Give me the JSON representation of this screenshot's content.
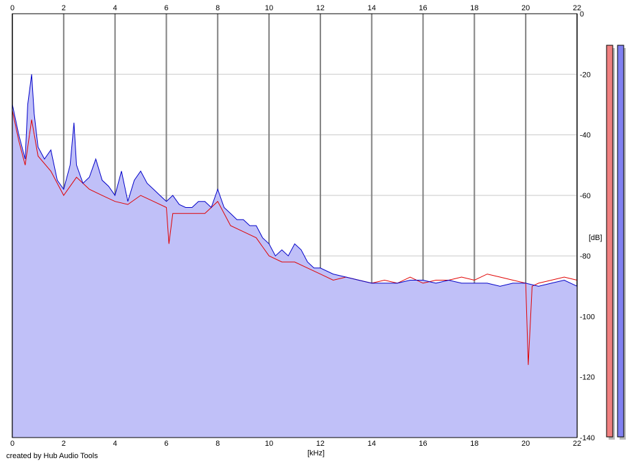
{
  "credit": "created by Hub Audio Tools",
  "chart_data": {
    "type": "area",
    "title": "",
    "xlabel": "[kHz]",
    "ylabel": "[dB]",
    "xlim": [
      0,
      22
    ],
    "ylim": [
      -140,
      0
    ],
    "x_ticks": [
      0,
      2,
      4,
      6,
      8,
      10,
      12,
      14,
      16,
      18,
      20,
      22
    ],
    "y_ticks": [
      0,
      -20,
      -40,
      -60,
      -80,
      -100,
      -120,
      -140
    ],
    "grid": true,
    "colors": {
      "fill": "#c0c0f8",
      "channel_a": "#0000c8",
      "channel_b": "#e00000",
      "meter_a": "#f08080",
      "meter_b": "#8080f0",
      "grid_major": "#808080",
      "grid_minor": "#c8c8c8"
    },
    "series": [
      {
        "color": "#0000c8",
        "x": [
          0.0,
          0.25,
          0.5,
          0.6,
          0.75,
          0.85,
          1.0,
          1.25,
          1.5,
          1.75,
          2.0,
          2.25,
          2.4,
          2.5,
          2.75,
          3.0,
          3.25,
          3.5,
          3.75,
          4.0,
          4.25,
          4.5,
          4.75,
          5.0,
          5.25,
          5.5,
          5.75,
          6.0,
          6.25,
          6.5,
          6.75,
          7.0,
          7.25,
          7.5,
          7.75,
          8.0,
          8.25,
          8.5,
          8.75,
          9.0,
          9.25,
          9.5,
          9.75,
          10.0,
          10.25,
          10.5,
          10.75,
          11.0,
          11.25,
          11.5,
          11.75,
          12.0,
          12.5,
          13.0,
          13.5,
          14.0,
          14.5,
          15.0,
          15.5,
          16.0,
          16.5,
          17.0,
          17.5,
          18.0,
          18.5,
          19.0,
          19.5,
          20.0,
          20.5,
          21.0,
          21.5,
          22.0
        ],
        "y": [
          -30,
          -40,
          -48,
          -30,
          -20,
          -33,
          -44,
          -48,
          -45,
          -55,
          -58,
          -50,
          -36,
          -50,
          -56,
          -54,
          -48,
          -55,
          -57,
          -60,
          -52,
          -62,
          -55,
          -52,
          -56,
          -58,
          -60,
          -62,
          -60,
          -63,
          -64,
          -64,
          -62,
          -62,
          -64,
          -58,
          -64,
          -66,
          -68,
          -68,
          -70,
          -70,
          -74,
          -76,
          -80,
          -78,
          -80,
          -76,
          -78,
          -82,
          -84,
          -84,
          -86,
          -87,
          -88,
          -89,
          -89,
          -89,
          -88,
          -88,
          -89,
          -88,
          -89,
          -89,
          -89,
          -90,
          -89,
          -89,
          -90,
          -89,
          -88,
          -90
        ]
      },
      {
        "color": "#e00000",
        "x": [
          0.0,
          0.25,
          0.5,
          0.75,
          1.0,
          1.5,
          2.0,
          2.5,
          3.0,
          3.5,
          4.0,
          4.5,
          5.0,
          5.5,
          6.0,
          6.1,
          6.25,
          6.5,
          7.0,
          7.5,
          8.0,
          8.5,
          9.0,
          9.5,
          10.0,
          10.5,
          11.0,
          11.5,
          12.0,
          12.5,
          13.0,
          13.5,
          14.0,
          14.5,
          15.0,
          15.5,
          16.0,
          16.5,
          17.0,
          17.5,
          18.0,
          18.5,
          19.0,
          19.5,
          20.0,
          20.1,
          20.25,
          20.5,
          21.0,
          21.5,
          22.0
        ],
        "y": [
          -32,
          -42,
          -50,
          -35,
          -47,
          -52,
          -60,
          -54,
          -58,
          -60,
          -62,
          -63,
          -60,
          -62,
          -64,
          -76,
          -66,
          -66,
          -66,
          -66,
          -62,
          -70,
          -72,
          -74,
          -80,
          -82,
          -82,
          -84,
          -86,
          -88,
          -87,
          -88,
          -89,
          -88,
          -89,
          -87,
          -89,
          -88,
          -88,
          -87,
          -88,
          -86,
          -87,
          -88,
          -89,
          -116,
          -90,
          -89,
          -88,
          -87,
          -88
        ]
      }
    ]
  }
}
